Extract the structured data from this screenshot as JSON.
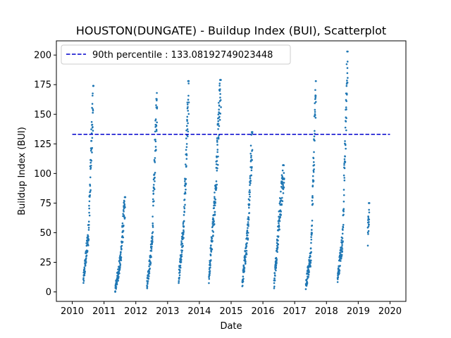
{
  "chart_data": {
    "type": "scatter",
    "title": "HOUSTON(DUNGATE) - Buildup Index (BUI), Scatterplot",
    "xlabel": "Date",
    "ylabel": "Buildup Index (BUI)",
    "xlim": [
      2009.5,
      2020.5
    ],
    "ylim": [
      -8,
      212
    ],
    "x_ticks": [
      2010,
      2011,
      2012,
      2013,
      2014,
      2015,
      2016,
      2017,
      2018,
      2019,
      2020
    ],
    "y_ticks": [
      0,
      25,
      50,
      75,
      100,
      125,
      150,
      175,
      200
    ],
    "grid": false,
    "legend_position": "upper-left",
    "colors": {
      "points": "#1f77b4",
      "reference_line": "#0000cc"
    },
    "reference_line": {
      "label": "90th percentile : 133.08192749023448",
      "value": 133.08192749023448,
      "x_range": [
        2010.0,
        2020.0
      ],
      "style": "dashed"
    },
    "season_clusters": [
      {
        "x_start": 2010.35,
        "x_end": 2010.67,
        "y_start": 9,
        "y_mid": 50,
        "y_end": 174
      },
      {
        "x_start": 2011.35,
        "x_end": 2011.67,
        "y_start": 2,
        "y_mid": 25,
        "y_end": 80
      },
      {
        "x_start": 2012.35,
        "x_end": 2012.67,
        "y_start": 5,
        "y_mid": 40,
        "y_end": 168
      },
      {
        "x_start": 2013.35,
        "x_end": 2013.67,
        "y_start": 12,
        "y_mid": 55,
        "y_end": 178
      },
      {
        "x_start": 2014.3,
        "x_end": 2014.68,
        "y_start": 13,
        "y_mid": 75,
        "y_end": 179
      },
      {
        "x_start": 2015.35,
        "x_end": 2015.67,
        "y_start": 7,
        "y_mid": 45,
        "y_end": 135
      },
      {
        "x_start": 2016.35,
        "x_end": 2016.67,
        "y_start": 6,
        "y_mid": 60,
        "y_end": 107
      },
      {
        "x_start": 2017.35,
        "x_end": 2017.67,
        "y_start": 6,
        "y_mid": 30,
        "y_end": 178
      },
      {
        "x_start": 2018.35,
        "x_end": 2018.67,
        "y_start": 11,
        "y_mid": 45,
        "y_end": 203
      },
      {
        "x_start": 2019.3,
        "x_end": 2019.35,
        "y_start": 46,
        "y_mid": 60,
        "y_end": 75
      }
    ]
  }
}
